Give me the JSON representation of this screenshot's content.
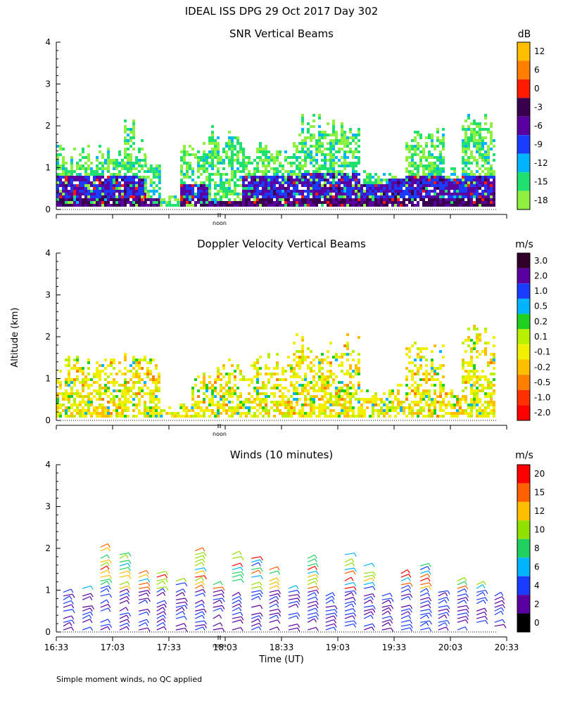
{
  "header": {
    "title": "IDEAL ISS DPG  29 Oct 2017 Day 302"
  },
  "footer": {
    "note": "Simple moment winds, no QC applied"
  },
  "shared": {
    "ylabel": "Altitude (km)",
    "xlabel": "Time (UT)",
    "noon_label": "noon",
    "x_ticks": [
      "16:33",
      "17:03",
      "17:33",
      "18:03",
      "18:33",
      "19:03",
      "19:33",
      "20:03",
      "20:33"
    ],
    "y_ticks": [
      "0",
      "1",
      "2",
      "3",
      "4"
    ]
  },
  "chart_data": [
    {
      "type": "heatmap",
      "title": "SNR Vertical Beams",
      "units": "dB",
      "ylim": [
        0,
        4
      ],
      "colorbar": {
        "labels": [
          "12",
          "6",
          "0",
          "-3",
          "-6",
          "-9",
          "-12",
          "-15",
          "-18"
        ],
        "colors": [
          "#ffbf00",
          "#ff8000",
          "#ff1a00",
          "#3a0050",
          "#5a00a0",
          "#1a3cff",
          "#00b4ff",
          "#20e070",
          "#90f040"
        ]
      },
      "segments": [
        {
          "t0": 0.0,
          "t1": 0.6,
          "top": 1.45,
          "deep": 0.8,
          "level": 0.7
        },
        {
          "t0": 0.6,
          "t1": 0.7,
          "top": 2.3,
          "deep": 0.8,
          "level": 0.8
        },
        {
          "t0": 0.7,
          "t1": 0.78,
          "top": 1.6,
          "deep": 0.8,
          "level": 0.8
        },
        {
          "t0": 0.78,
          "t1": 0.92,
          "top": 1.3,
          "deep": 0.25,
          "level": 0.3
        },
        {
          "t0": 0.92,
          "t1": 1.1,
          "top": 0.3,
          "deep": 0.0,
          "level": 0.1
        },
        {
          "t0": 1.1,
          "t1": 1.35,
          "top": 1.5,
          "deep": 0.6,
          "level": 0.4
        },
        {
          "t0": 1.35,
          "t1": 1.65,
          "top": 2.0,
          "deep": 0.2,
          "level": 0.25
        },
        {
          "t0": 1.65,
          "t1": 2.15,
          "top": 1.5,
          "deep": 0.8,
          "level": 0.5
        },
        {
          "t0": 2.15,
          "t1": 2.7,
          "top": 2.2,
          "deep": 0.85,
          "level": 0.75
        },
        {
          "t0": 2.7,
          "t1": 2.95,
          "top": 0.9,
          "deep": 0.6,
          "level": 0.55
        },
        {
          "t0": 2.95,
          "t1": 3.1,
          "top": 0.9,
          "deep": 0.7,
          "level": 0.6
        },
        {
          "t0": 3.1,
          "t1": 3.45,
          "top": 1.9,
          "deep": 0.75,
          "level": 0.7
        },
        {
          "t0": 3.45,
          "t1": 3.6,
          "top": 0.95,
          "deep": 0.7,
          "level": 0.55
        },
        {
          "t0": 3.6,
          "t1": 3.9,
          "top": 2.35,
          "deep": 0.8,
          "level": 0.75
        }
      ]
    },
    {
      "type": "heatmap",
      "title": "Doppler Velocity Vertical Beams",
      "units": "m/s",
      "ylim": [
        0,
        4
      ],
      "colorbar": {
        "labels": [
          "3.0",
          "2.0",
          "1.0",
          "0.5",
          "0.2",
          "0.1",
          "-0.1",
          "-0.2",
          "-0.5",
          "-1.0",
          "-2.0"
        ],
        "colors": [
          "#30002a",
          "#5a00a0",
          "#1a3cff",
          "#00b4ff",
          "#20d020",
          "#b8f000",
          "#f0f000",
          "#ffbf00",
          "#ff8000",
          "#ff3000",
          "#ff0000"
        ]
      },
      "segments": [
        {
          "t0": 0.0,
          "t1": 0.75,
          "top": 1.5,
          "level": 0.45
        },
        {
          "t0": 0.75,
          "t1": 0.92,
          "top": 1.6,
          "level": 0.55
        },
        {
          "t0": 0.92,
          "t1": 1.2,
          "top": 0.35,
          "level": 0.7
        },
        {
          "t0": 1.2,
          "t1": 1.5,
          "top": 1.3,
          "level": 0.45
        },
        {
          "t0": 1.5,
          "t1": 2.1,
          "top": 1.5,
          "level": 0.5
        },
        {
          "t0": 2.1,
          "t1": 2.7,
          "top": 2.0,
          "level": 0.45
        },
        {
          "t0": 2.7,
          "t1": 3.1,
          "top": 0.8,
          "level": 0.45
        },
        {
          "t0": 3.1,
          "t1": 3.45,
          "top": 1.8,
          "level": 0.45
        },
        {
          "t0": 3.45,
          "t1": 3.6,
          "top": 0.7,
          "level": 0.5
        },
        {
          "t0": 3.6,
          "t1": 3.9,
          "top": 2.3,
          "level": 0.5
        }
      ]
    },
    {
      "type": "scatter",
      "title": "Winds (10 minutes)",
      "units": "m/s",
      "ylim": [
        0,
        4
      ],
      "colorbar": {
        "labels": [
          "20",
          "15",
          "12",
          "10",
          "8",
          "6",
          "4",
          "2",
          "0"
        ],
        "colors": [
          "#ff0000",
          "#ff6000",
          "#ffbf00",
          "#90e000",
          "#20d060",
          "#00b4ff",
          "#1a3cff",
          "#5a00a0",
          "#000000"
        ]
      },
      "profiles": [
        0.0,
        0.17,
        0.33,
        0.5,
        0.67,
        0.83,
        1.0,
        1.17,
        1.33,
        1.5,
        1.67,
        1.83,
        2.0,
        2.17,
        2.33,
        2.5,
        2.67,
        2.83,
        3.0,
        3.17,
        3.33,
        3.5,
        3.67,
        3.83
      ]
    }
  ]
}
